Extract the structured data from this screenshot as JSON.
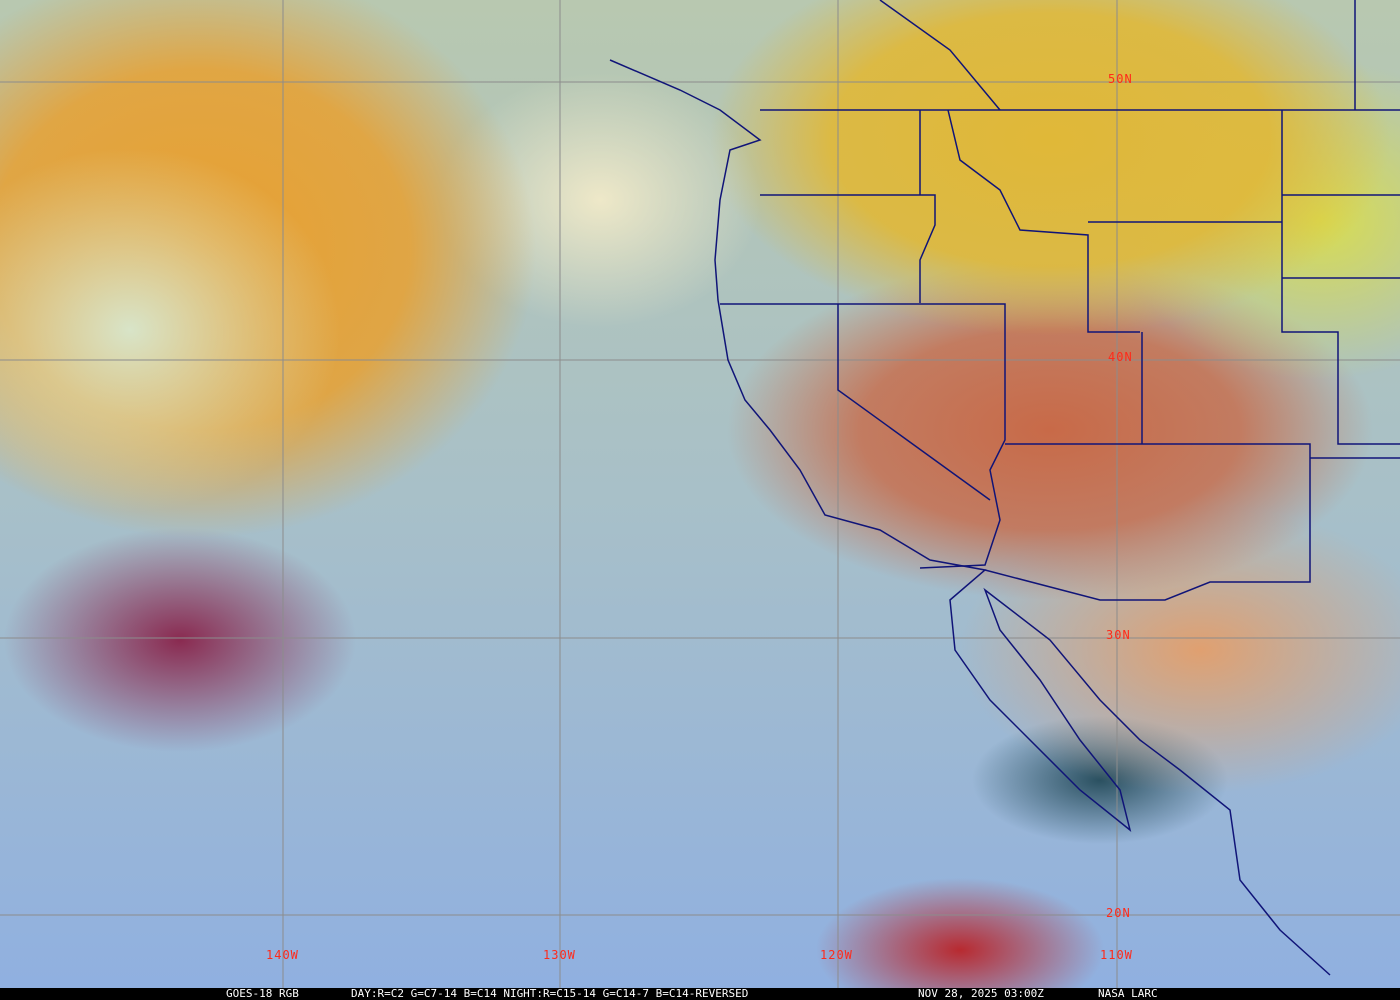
{
  "caption": {
    "satellite": "GOES-18 RGB",
    "recipe": "DAY:R=C2 G=C7-14 B=C14 NIGHT:R=C15-14 G=C14-7 B=C14-REVERSED",
    "datetime": "NOV 28, 2025 03:00Z",
    "source": "NASA LARC"
  },
  "latitude_labels": [
    "50N",
    "40N",
    "30N",
    "20N"
  ],
  "longitude_labels": [
    "140W",
    "130W",
    "120W",
    "110W"
  ],
  "colors": {
    "grid": "#8c8c8c",
    "borders": "#101478",
    "labels": "#ff2a1a"
  }
}
